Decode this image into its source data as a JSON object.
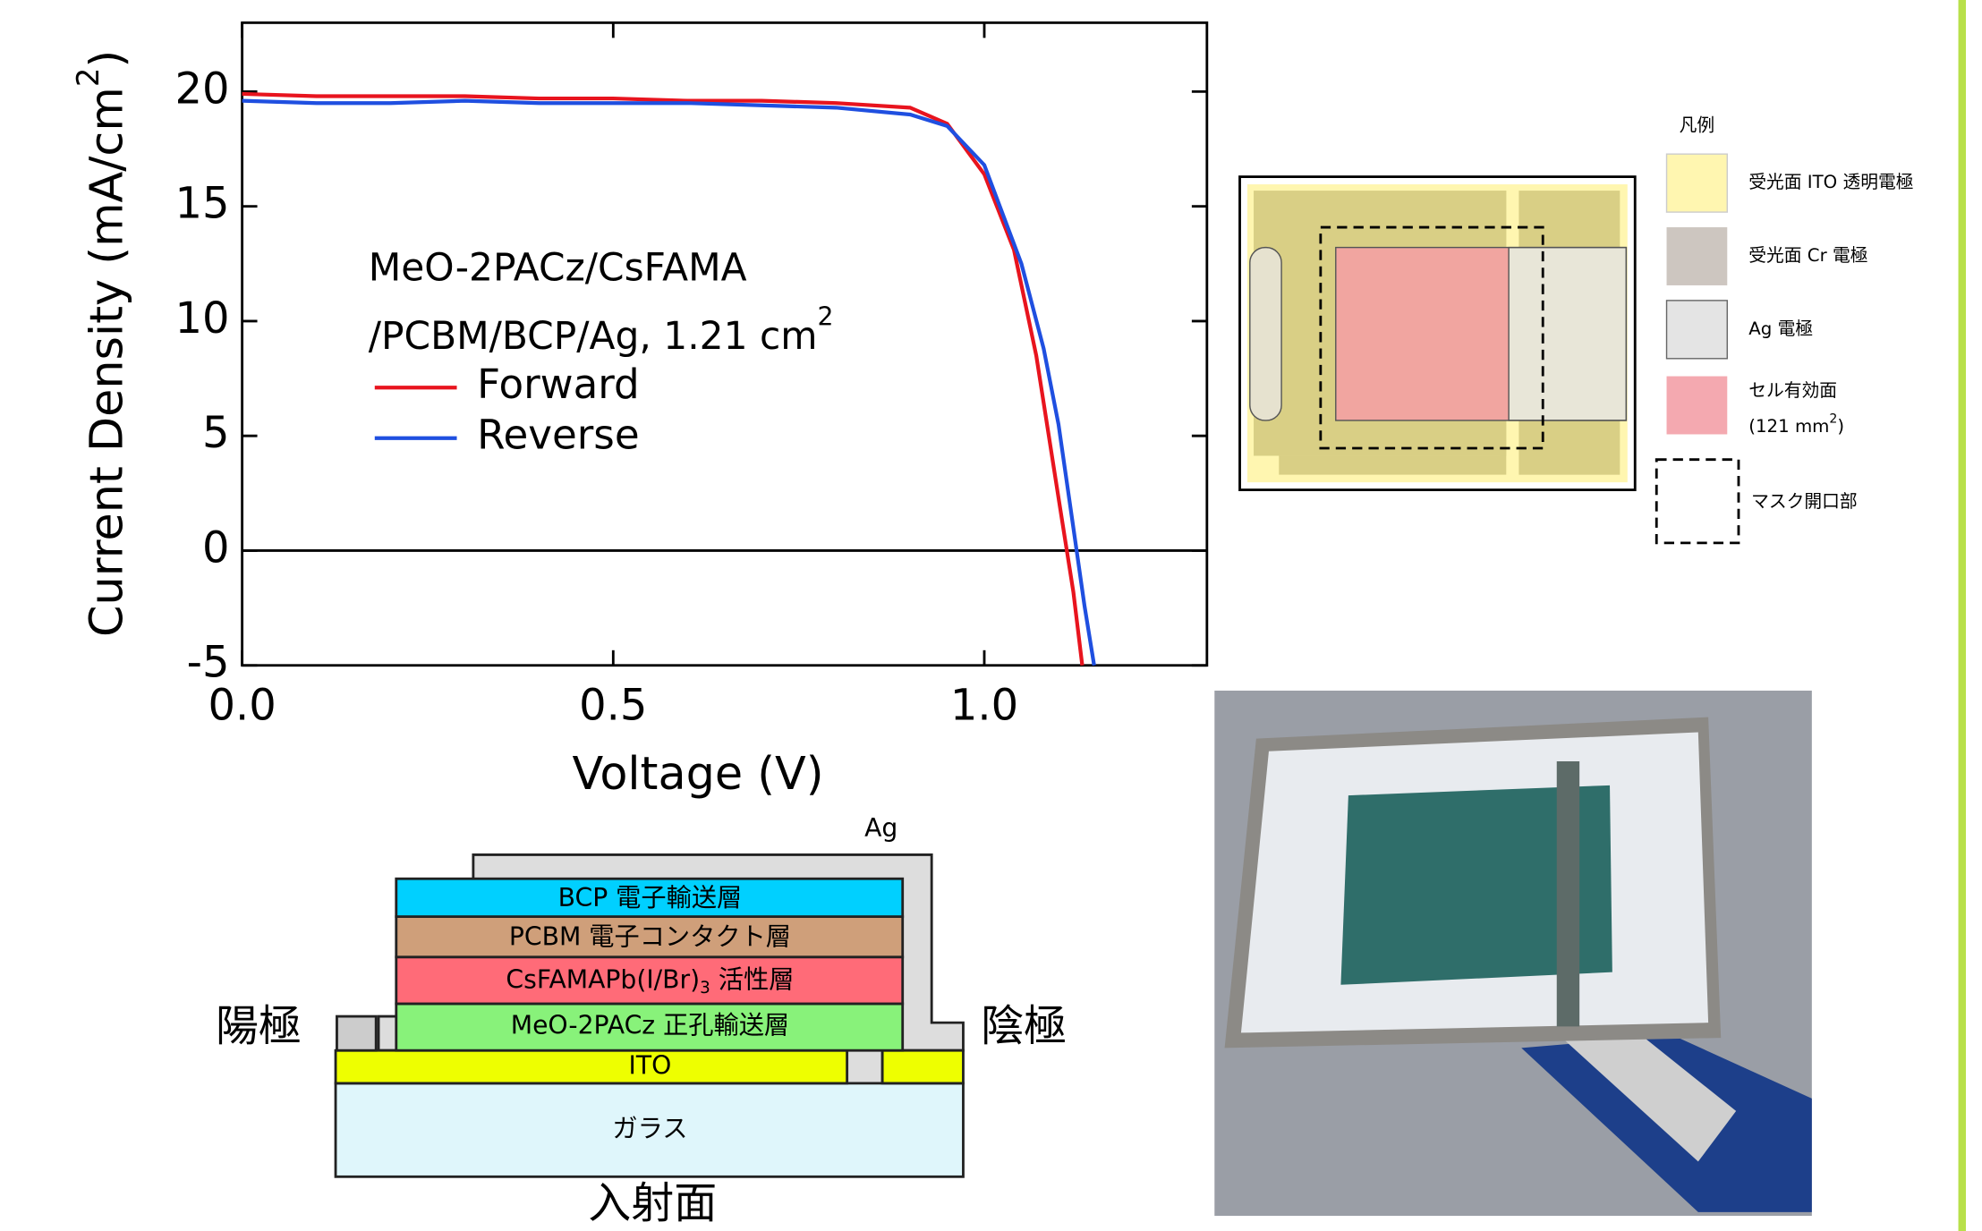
{
  "chart_data": {
    "type": "line",
    "xlabel": "Voltage (V)",
    "ylabel": {
      "text": "Current Density (mA/cm",
      "sup": "2",
      "end": ")"
    },
    "annotation": {
      "line1": "MeO-2PACz/CsFAMA",
      "line2": "/PCBM/BCP/Ag, 1.21 cm",
      "sup": "2"
    },
    "xlim": [
      0,
      1.3
    ],
    "xticks": [
      {
        "value": 0,
        "label": "0.0"
      },
      0.5,
      {
        "value": 1,
        "label": "1.0"
      }
    ],
    "ylim": [
      -5,
      23
    ],
    "yticks": [
      -5,
      0,
      5,
      10,
      15,
      20
    ],
    "hline": 0,
    "series": [
      {
        "name": "Forward",
        "color": "#e8141e",
        "x": [
          0,
          0.1,
          0.2,
          0.3,
          0.4,
          0.5,
          0.6,
          0.7,
          0.8,
          0.9,
          0.95,
          1.0,
          1.04,
          1.07,
          1.1,
          1.12,
          1.132
        ],
        "values": [
          19.9,
          19.8,
          19.8,
          19.8,
          19.7,
          19.7,
          19.6,
          19.6,
          19.5,
          19.3,
          18.6,
          16.4,
          13.1,
          8.5,
          2.3,
          -1.8,
          -5
        ]
      },
      {
        "name": "Reverse",
        "color": "#1f4fe0",
        "x": [
          0,
          0.1,
          0.2,
          0.3,
          0.4,
          0.5,
          0.6,
          0.7,
          0.8,
          0.9,
          0.95,
          1.0,
          1.05,
          1.08,
          1.1,
          1.12,
          1.135,
          1.148
        ],
        "values": [
          19.6,
          19.5,
          19.5,
          19.6,
          19.5,
          19.5,
          19.5,
          19.4,
          19.3,
          19.0,
          18.5,
          16.8,
          12.5,
          8.8,
          5.5,
          1.0,
          -2.4,
          -5
        ]
      }
    ]
  },
  "layout_diagram": {
    "legend_title": "凡例",
    "items": [
      "受光面 ITO 透明電極",
      "受光面 Cr 電極",
      "Ag 電極",
      "セル有効面",
      "マスク開口部"
    ],
    "area": {
      "text": "(121 mm",
      "sup": "2",
      "end": ")"
    }
  },
  "stack_diagram": {
    "ag": "Ag",
    "bcp": "BCP 電子輸送層",
    "pcbm": "PCBM 電子コンタクト層",
    "active": {
      "text": "CsFAMAPb(I/Br)",
      "sub": "3",
      "end": " 活性層"
    },
    "htl": "MeO-2PACz 正孔輸送層",
    "ito": "ITO",
    "glass": "ガラス",
    "anode": "陽極",
    "cathode": "陰極",
    "incident": "入射面"
  }
}
